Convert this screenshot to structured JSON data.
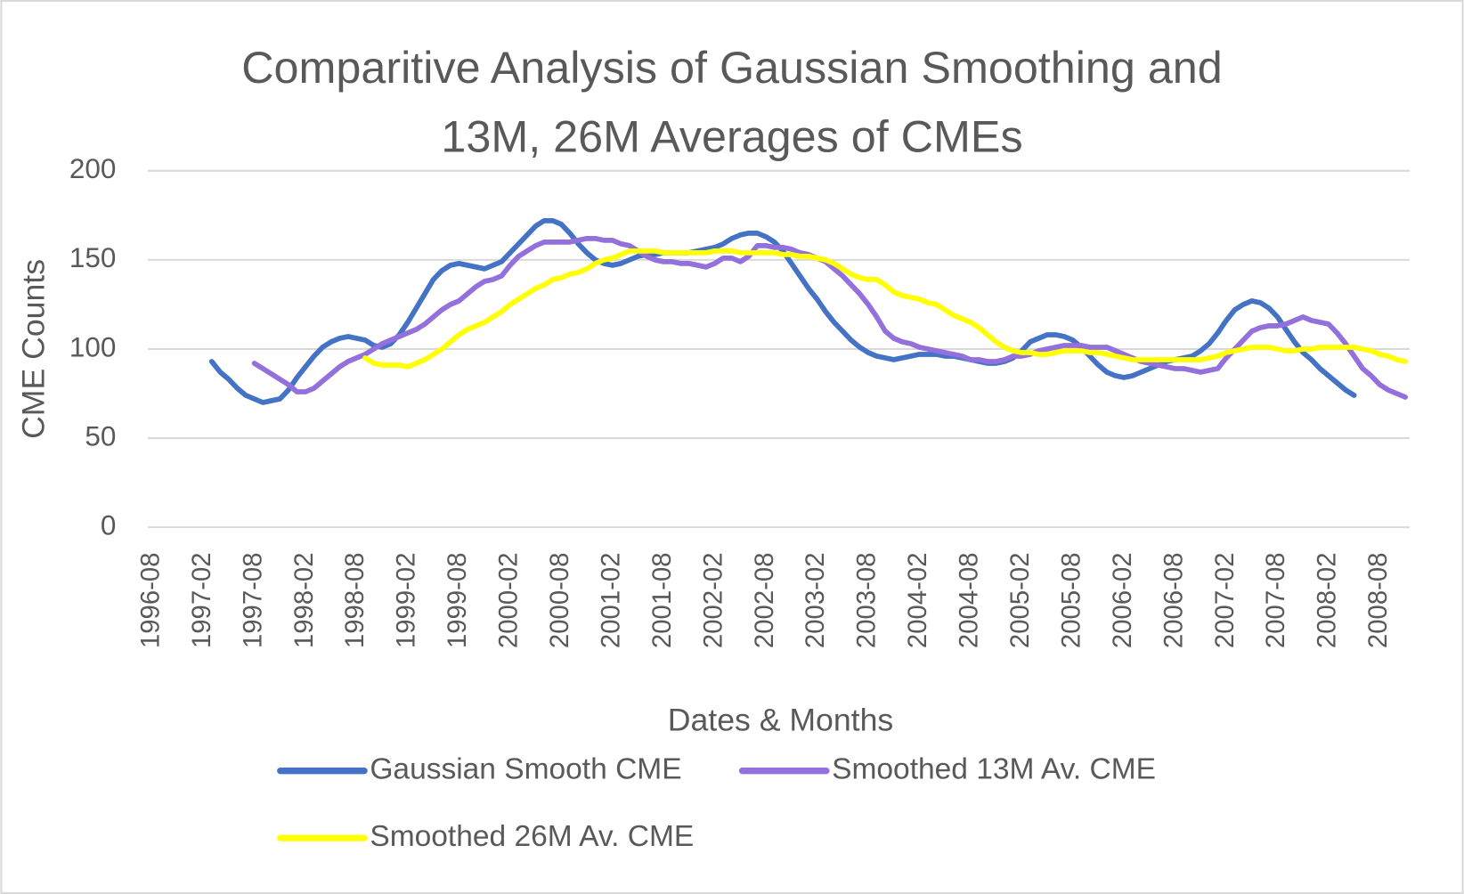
{
  "chart_data": {
    "type": "line",
    "title": [
      "Comparitive Analysis of Gaussian Smoothing and",
      "13M, 26M Averages of CMEs"
    ],
    "x_label": "Dates & Months",
    "y_label": "CME Counts",
    "ylim": [
      0,
      200
    ],
    "yticks": [
      0,
      50,
      100,
      150,
      200
    ],
    "grid": true,
    "legend": "bottom",
    "categories": [
      "1996-08",
      null,
      null,
      null,
      null,
      null,
      "1997-02",
      null,
      null,
      null,
      null,
      null,
      "1997-08",
      null,
      null,
      null,
      null,
      null,
      "1998-02",
      null,
      null,
      null,
      null,
      null,
      "1998-08",
      null,
      null,
      null,
      null,
      null,
      "1999-02",
      null,
      null,
      null,
      null,
      null,
      "1999-08",
      null,
      null,
      null,
      null,
      null,
      "2000-02",
      null,
      null,
      null,
      null,
      null,
      "2000-08",
      null,
      null,
      null,
      null,
      null,
      "2001-02",
      null,
      null,
      null,
      null,
      null,
      "2001-08",
      null,
      null,
      null,
      null,
      null,
      "2002-02",
      null,
      null,
      null,
      null,
      null,
      "2002-08",
      null,
      null,
      null,
      null,
      null,
      "2003-02",
      null,
      null,
      null,
      null,
      null,
      "2003-08",
      null,
      null,
      null,
      null,
      null,
      "2004-02",
      null,
      null,
      null,
      null,
      null,
      "2004-08",
      null,
      null,
      null,
      null,
      null,
      "2005-02",
      null,
      null,
      null,
      null,
      null,
      "2005-08",
      null,
      null,
      null,
      null,
      null,
      "2006-02",
      null,
      null,
      null,
      null,
      null,
      "2006-08",
      null,
      null,
      null,
      null,
      null,
      "2007-02",
      null,
      null,
      null,
      null,
      null,
      "2007-08",
      null,
      null,
      null,
      null,
      null,
      "2008-02",
      null,
      null,
      null,
      null,
      null,
      "2008-08",
      null,
      null,
      null
    ],
    "series": [
      {
        "name": "Gaussian Smooth CME",
        "color": "#4472c4",
        "values": [
          null,
          null,
          null,
          null,
          null,
          null,
          null,
          93,
          87,
          83,
          78,
          74,
          72,
          70,
          71,
          72,
          77,
          84,
          90,
          96,
          101,
          104,
          106,
          107,
          106,
          105,
          102,
          101,
          103,
          108,
          115,
          123,
          131,
          139,
          144,
          147,
          148,
          147,
          146,
          145,
          147,
          149,
          154,
          159,
          164,
          169,
          172,
          172,
          170,
          165,
          159,
          154,
          150,
          148,
          147,
          148,
          150,
          152,
          153,
          153,
          154,
          154,
          154,
          154,
          155,
          156,
          157,
          159,
          162,
          164,
          165,
          165,
          163,
          160,
          155,
          148,
          141,
          134,
          128,
          121,
          115,
          110,
          105,
          101,
          98,
          96,
          95,
          94,
          95,
          96,
          97,
          97,
          97,
          96,
          96,
          95,
          94,
          93,
          92,
          92,
          93,
          95,
          99,
          104,
          106,
          108,
          108,
          107,
          105,
          101,
          96,
          91,
          87,
          85,
          84,
          85,
          87,
          89,
          91,
          93,
          94,
          95,
          96,
          99,
          103,
          109,
          116,
          122,
          125,
          127,
          126,
          123,
          118,
          111,
          104,
          98,
          94,
          89,
          85,
          81,
          77,
          74,
          null,
          null,
          null,
          null,
          null,
          null
        ]
      },
      {
        "name": "Smoothed 13M Av. CME",
        "color": "#9370db",
        "values": [
          null,
          null,
          null,
          null,
          null,
          null,
          null,
          null,
          null,
          null,
          null,
          null,
          92,
          89,
          86,
          83,
          80,
          76,
          76,
          78,
          82,
          86,
          90,
          93,
          95,
          97,
          100,
          103,
          105,
          107,
          109,
          111,
          114,
          118,
          122,
          125,
          127,
          131,
          135,
          138,
          139,
          141,
          147,
          152,
          155,
          158,
          160,
          160,
          160,
          160,
          161,
          162,
          162,
          161,
          161,
          159,
          158,
          155,
          152,
          150,
          149,
          149,
          148,
          148,
          147,
          146,
          148,
          151,
          151,
          149,
          152,
          158,
          158,
          157,
          157,
          156,
          154,
          153,
          151,
          149,
          145,
          141,
          136,
          131,
          125,
          118,
          110,
          106,
          104,
          103,
          101,
          100,
          99,
          98,
          97,
          96,
          94,
          94,
          93,
          93,
          94,
          96,
          96,
          97,
          99,
          100,
          101,
          102,
          102,
          102,
          101,
          101,
          101,
          99,
          97,
          95,
          93,
          92,
          91,
          90,
          89,
          89,
          88,
          87,
          88,
          89,
          95,
          100,
          105,
          110,
          112,
          113,
          113,
          114,
          116,
          118,
          116,
          115,
          114,
          109,
          103,
          96,
          89,
          85,
          80,
          77,
          75,
          73
        ]
      },
      {
        "name": "Smoothed 26M Av. CME",
        "color": "#ffff00",
        "values": [
          null,
          null,
          null,
          null,
          null,
          null,
          null,
          null,
          null,
          null,
          null,
          null,
          null,
          null,
          null,
          null,
          null,
          null,
          null,
          null,
          null,
          null,
          null,
          null,
          null,
          95,
          92,
          91,
          91,
          91,
          90,
          92,
          94,
          97,
          100,
          104,
          108,
          111,
          113,
          115,
          118,
          121,
          125,
          128,
          131,
          134,
          136,
          139,
          140,
          142,
          143,
          145,
          148,
          150,
          151,
          153,
          155,
          155,
          155,
          155,
          154,
          154,
          154,
          154,
          154,
          154,
          155,
          155,
          155,
          154,
          154,
          154,
          154,
          154,
          153,
          153,
          152,
          152,
          151,
          150,
          148,
          145,
          142,
          140,
          139,
          139,
          136,
          132,
          130,
          129,
          128,
          126,
          125,
          122,
          119,
          117,
          115,
          112,
          108,
          104,
          101,
          99,
          98,
          98,
          97,
          97,
          98,
          99,
          99,
          99,
          98,
          98,
          97,
          96,
          95,
          94,
          94,
          94,
          94,
          94,
          94,
          94,
          94,
          94,
          95,
          96,
          98,
          99,
          100,
          101,
          101,
          101,
          100,
          99,
          99,
          100,
          100,
          101,
          101,
          101,
          101,
          101,
          100,
          99,
          97,
          96,
          94,
          93
        ]
      }
    ]
  }
}
